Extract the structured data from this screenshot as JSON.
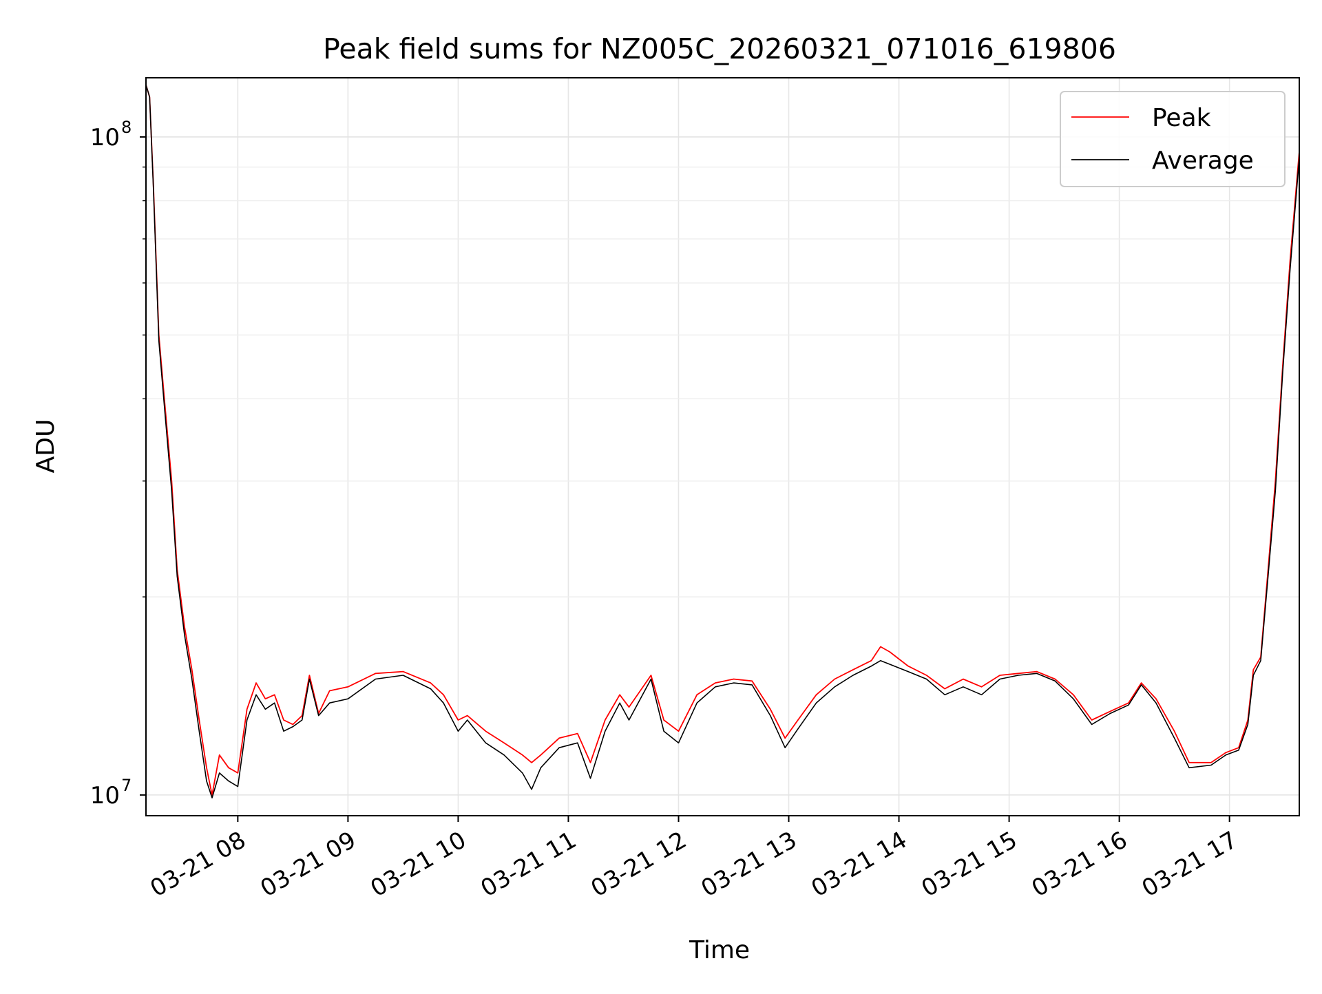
{
  "chart_data": {
    "type": "line",
    "title": "Peak field sums for NZ005C_20260321_071016_619806",
    "xlabel": "Time",
    "ylabel": "ADU",
    "yscale": "log",
    "grid": true,
    "legend_position": "top-right",
    "xlim": [
      "03-21 07:10",
      "03-21 17:38"
    ],
    "ylim": [
      9300000.0,
      123000000.0
    ],
    "x_ticks": [
      {
        "t": "03-21 08:00",
        "label": "03-21 08"
      },
      {
        "t": "03-21 09:00",
        "label": "03-21 09"
      },
      {
        "t": "03-21 10:00",
        "label": "03-21 10"
      },
      {
        "t": "03-21 11:00",
        "label": "03-21 11"
      },
      {
        "t": "03-21 12:00",
        "label": "03-21 12"
      },
      {
        "t": "03-21 13:00",
        "label": "03-21 13"
      },
      {
        "t": "03-21 14:00",
        "label": "03-21 14"
      },
      {
        "t": "03-21 15:00",
        "label": "03-21 15"
      },
      {
        "t": "03-21 16:00",
        "label": "03-21 16"
      },
      {
        "t": "03-21 17:00",
        "label": "03-21 17"
      }
    ],
    "y_ticks": [
      {
        "value": 10000000,
        "base": "10",
        "exp": "7"
      },
      {
        "value": 100000000,
        "base": "10",
        "exp": "8"
      }
    ],
    "series": [
      {
        "name": "Peak",
        "color": "#ff0000",
        "points": [
          [
            "03-21 07:10",
            120000000.0
          ],
          [
            "03-21 07:12",
            115000000.0
          ],
          [
            "03-21 07:14",
            85000000.0
          ],
          [
            "03-21 07:17",
            50000000.0
          ],
          [
            "03-21 07:20",
            40000000.0
          ],
          [
            "03-21 07:24",
            30000000.0
          ],
          [
            "03-21 07:27",
            22000000.0
          ],
          [
            "03-21 07:31",
            18000000.0
          ],
          [
            "03-21 07:35",
            15500000.0
          ],
          [
            "03-21 07:39",
            13000000.0
          ],
          [
            "03-21 07:43",
            11000000.0
          ],
          [
            "03-21 07:46",
            10000000.0
          ],
          [
            "03-21 07:50",
            11500000.0
          ],
          [
            "03-21 07:55",
            11000000.0
          ],
          [
            "03-21 08:00",
            10800000.0
          ],
          [
            "03-21 08:05",
            13500000.0
          ],
          [
            "03-21 08:10",
            14800000.0
          ],
          [
            "03-21 08:15",
            14000000.0
          ],
          [
            "03-21 08:20",
            14200000.0
          ],
          [
            "03-21 08:25",
            13000000.0
          ],
          [
            "03-21 08:30",
            12800000.0
          ],
          [
            "03-21 08:35",
            13200000.0
          ],
          [
            "03-21 08:39",
            15200000.0
          ],
          [
            "03-21 08:44",
            13300000.0
          ],
          [
            "03-21 08:50",
            14400000.0
          ],
          [
            "03-21 09:00",
            14600000.0
          ],
          [
            "03-21 09:15",
            15300000.0
          ],
          [
            "03-21 09:30",
            15400000.0
          ],
          [
            "03-21 09:45",
            14800000.0
          ],
          [
            "03-21 09:52",
            14200000.0
          ],
          [
            "03-21 10:00",
            13000000.0
          ],
          [
            "03-21 10:05",
            13200000.0
          ],
          [
            "03-21 10:15",
            12500000.0
          ],
          [
            "03-21 10:25",
            12000000.0
          ],
          [
            "03-21 10:35",
            11500000.0
          ],
          [
            "03-21 10:40",
            11200000.0
          ],
          [
            "03-21 10:45",
            11500000.0
          ],
          [
            "03-21 10:55",
            12200000.0
          ],
          [
            "03-21 11:05",
            12400000.0
          ],
          [
            "03-21 11:12",
            11200000.0
          ],
          [
            "03-21 11:20",
            13000000.0
          ],
          [
            "03-21 11:28",
            14200000.0
          ],
          [
            "03-21 11:33",
            13600000.0
          ],
          [
            "03-21 11:45",
            15200000.0
          ],
          [
            "03-21 11:52",
            13000000.0
          ],
          [
            "03-21 12:00",
            12500000.0
          ],
          [
            "03-21 12:10",
            14200000.0
          ],
          [
            "03-21 12:20",
            14800000.0
          ],
          [
            "03-21 12:30",
            15000000.0
          ],
          [
            "03-21 12:40",
            14900000.0
          ],
          [
            "03-21 12:50",
            13500000.0
          ],
          [
            "03-21 12:58",
            12200000.0
          ],
          [
            "03-21 13:05",
            13000000.0
          ],
          [
            "03-21 13:15",
            14200000.0
          ],
          [
            "03-21 13:25",
            15000000.0
          ],
          [
            "03-21 13:35",
            15500000.0
          ],
          [
            "03-21 13:45",
            16000000.0
          ],
          [
            "03-21 13:50",
            16800000.0
          ],
          [
            "03-21 13:55",
            16500000.0
          ],
          [
            "03-21 14:05",
            15700000.0
          ],
          [
            "03-21 14:15",
            15200000.0
          ],
          [
            "03-21 14:25",
            14500000.0
          ],
          [
            "03-21 14:35",
            15000000.0
          ],
          [
            "03-21 14:45",
            14600000.0
          ],
          [
            "03-21 14:55",
            15200000.0
          ],
          [
            "03-21 15:05",
            15300000.0
          ],
          [
            "03-21 15:15",
            15400000.0
          ],
          [
            "03-21 15:25",
            15000000.0
          ],
          [
            "03-21 15:35",
            14200000.0
          ],
          [
            "03-21 15:45",
            13000000.0
          ],
          [
            "03-21 15:55",
            13400000.0
          ],
          [
            "03-21 16:05",
            13800000.0
          ],
          [
            "03-21 16:12",
            14800000.0
          ],
          [
            "03-21 16:20",
            14000000.0
          ],
          [
            "03-21 16:30",
            12500000.0
          ],
          [
            "03-21 16:38",
            11200000.0
          ],
          [
            "03-21 16:50",
            11200000.0
          ],
          [
            "03-21 16:58",
            11600000.0
          ],
          [
            "03-21 17:05",
            11800000.0
          ],
          [
            "03-21 17:10",
            13000000.0
          ],
          [
            "03-21 17:13",
            15500000.0
          ],
          [
            "03-21 17:17",
            16200000.0
          ],
          [
            "03-21 17:21",
            22000000.0
          ],
          [
            "03-21 17:25",
            30000000.0
          ],
          [
            "03-21 17:29",
            45000000.0
          ],
          [
            "03-21 17:33",
            65000000.0
          ],
          [
            "03-21 17:38",
            95000000.0
          ]
        ]
      },
      {
        "name": "Average",
        "color": "#000000",
        "points": [
          [
            "03-21 07:10",
            120000000.0
          ],
          [
            "03-21 07:12",
            115000000.0
          ],
          [
            "03-21 07:14",
            84000000.0
          ],
          [
            "03-21 07:17",
            49000000.0
          ],
          [
            "03-21 07:20",
            39000000.0
          ],
          [
            "03-21 07:24",
            29000000.0
          ],
          [
            "03-21 07:27",
            21500000.0
          ],
          [
            "03-21 07:31",
            17500000.0
          ],
          [
            "03-21 07:35",
            15000000.0
          ],
          [
            "03-21 07:39",
            12500000.0
          ],
          [
            "03-21 07:43",
            10500000.0
          ],
          [
            "03-21 07:46",
            9900000.0
          ],
          [
            "03-21 07:50",
            10800000.0
          ],
          [
            "03-21 07:55",
            10500000.0
          ],
          [
            "03-21 08:00",
            10300000.0
          ],
          [
            "03-21 08:05",
            13000000.0
          ],
          [
            "03-21 08:10",
            14200000.0
          ],
          [
            "03-21 08:15",
            13500000.0
          ],
          [
            "03-21 08:20",
            13800000.0
          ],
          [
            "03-21 08:25",
            12500000.0
          ],
          [
            "03-21 08:30",
            12700000.0
          ],
          [
            "03-21 08:35",
            13000000.0
          ],
          [
            "03-21 08:39",
            15000000.0
          ],
          [
            "03-21 08:44",
            13200000.0
          ],
          [
            "03-21 08:50",
            13800000.0
          ],
          [
            "03-21 09:00",
            14000000.0
          ],
          [
            "03-21 09:15",
            15000000.0
          ],
          [
            "03-21 09:30",
            15200000.0
          ],
          [
            "03-21 09:45",
            14500000.0
          ],
          [
            "03-21 09:52",
            13800000.0
          ],
          [
            "03-21 10:00",
            12500000.0
          ],
          [
            "03-21 10:05",
            13000000.0
          ],
          [
            "03-21 10:15",
            12000000.0
          ],
          [
            "03-21 10:25",
            11500000.0
          ],
          [
            "03-21 10:35",
            10800000.0
          ],
          [
            "03-21 10:40",
            10200000.0
          ],
          [
            "03-21 10:45",
            11000000.0
          ],
          [
            "03-21 10:55",
            11800000.0
          ],
          [
            "03-21 11:05",
            12000000.0
          ],
          [
            "03-21 11:12",
            10600000.0
          ],
          [
            "03-21 11:20",
            12500000.0
          ],
          [
            "03-21 11:28",
            13800000.0
          ],
          [
            "03-21 11:33",
            13000000.0
          ],
          [
            "03-21 11:45",
            15000000.0
          ],
          [
            "03-21 11:52",
            12500000.0
          ],
          [
            "03-21 12:00",
            12000000.0
          ],
          [
            "03-21 12:10",
            13800000.0
          ],
          [
            "03-21 12:20",
            14600000.0
          ],
          [
            "03-21 12:30",
            14800000.0
          ],
          [
            "03-21 12:40",
            14700000.0
          ],
          [
            "03-21 12:50",
            13200000.0
          ],
          [
            "03-21 12:58",
            11800000.0
          ],
          [
            "03-21 13:05",
            12600000.0
          ],
          [
            "03-21 13:15",
            13800000.0
          ],
          [
            "03-21 13:25",
            14600000.0
          ],
          [
            "03-21 13:35",
            15200000.0
          ],
          [
            "03-21 13:45",
            15700000.0
          ],
          [
            "03-21 13:50",
            16000000.0
          ],
          [
            "03-21 13:55",
            15800000.0
          ],
          [
            "03-21 14:05",
            15400000.0
          ],
          [
            "03-21 14:15",
            15000000.0
          ],
          [
            "03-21 14:25",
            14200000.0
          ],
          [
            "03-21 14:35",
            14600000.0
          ],
          [
            "03-21 14:45",
            14200000.0
          ],
          [
            "03-21 14:55",
            15000000.0
          ],
          [
            "03-21 15:05",
            15200000.0
          ],
          [
            "03-21 15:15",
            15300000.0
          ],
          [
            "03-21 15:25",
            14900000.0
          ],
          [
            "03-21 15:35",
            14000000.0
          ],
          [
            "03-21 15:45",
            12800000.0
          ],
          [
            "03-21 15:55",
            13300000.0
          ],
          [
            "03-21 16:05",
            13700000.0
          ],
          [
            "03-21 16:12",
            14700000.0
          ],
          [
            "03-21 16:20",
            13800000.0
          ],
          [
            "03-21 16:30",
            12200000.0
          ],
          [
            "03-21 16:38",
            11000000.0
          ],
          [
            "03-21 16:50",
            11100000.0
          ],
          [
            "03-21 16:58",
            11500000.0
          ],
          [
            "03-21 17:05",
            11700000.0
          ],
          [
            "03-21 17:10",
            12800000.0
          ],
          [
            "03-21 17:13",
            15200000.0
          ],
          [
            "03-21 17:17",
            16000000.0
          ],
          [
            "03-21 17:21",
            21500000.0
          ],
          [
            "03-21 17:25",
            29000000.0
          ],
          [
            "03-21 17:29",
            44000000.0
          ],
          [
            "03-21 17:33",
            63000000.0
          ],
          [
            "03-21 17:38",
            93000000.0
          ]
        ]
      }
    ]
  }
}
